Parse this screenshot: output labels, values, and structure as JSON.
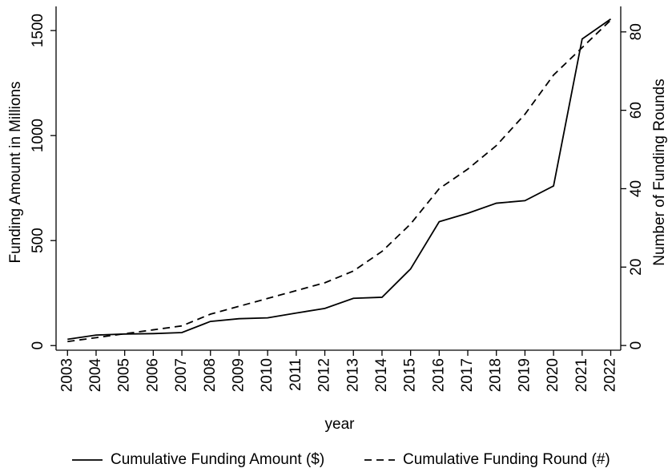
{
  "chart_data": {
    "type": "line",
    "x": [
      2003,
      2004,
      2005,
      2006,
      2007,
      2008,
      2009,
      2010,
      2011,
      2012,
      2013,
      2014,
      2015,
      2016,
      2017,
      2018,
      2019,
      2020,
      2021,
      2022
    ],
    "xlim": [
      2002.6,
      2022.35
    ],
    "x_label": "year",
    "y_label": "Funding Amount in Millions",
    "y2_label": "Number of Funding Rounds",
    "ylim": [
      -22,
      1615
    ],
    "yticks": [
      0,
      500,
      1000,
      1500
    ],
    "y2lim": [
      -1.2,
      86.5
    ],
    "y2ticks": [
      0,
      20,
      40,
      60,
      80
    ],
    "series": [
      {
        "name": "Cumulative Funding Amount ($)",
        "color": "#000000",
        "dash": "solid",
        "values": [
          30,
          50,
          55,
          57,
          62,
          115,
          128,
          132,
          155,
          177,
          225,
          230,
          365,
          590,
          630,
          678,
          690,
          760,
          1460,
          1555
        ]
      },
      {
        "name": "Cumulative Funding Round (#)",
        "color": "#000000",
        "dash": "dashed",
        "axis": "y2",
        "values": [
          1,
          2,
          3,
          4,
          5,
          8,
          10,
          12,
          14,
          16,
          19,
          24,
          31,
          40,
          45,
          51,
          59,
          69,
          76,
          83
        ]
      }
    ]
  }
}
